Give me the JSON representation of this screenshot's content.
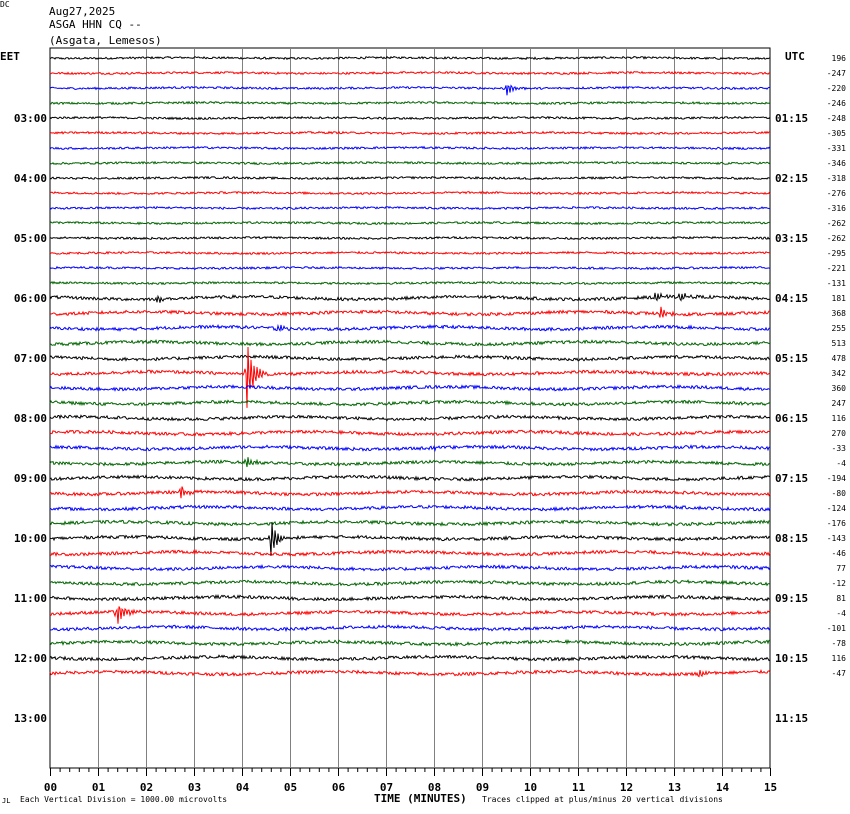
{
  "header": {
    "date": "Aug27,2025",
    "station": "ASGA HHN CQ --",
    "location": "(Asgata, Lemesos)"
  },
  "axes_labels": {
    "left_zone": "EET",
    "right_zone": "UTC",
    "dc": "DC",
    "x_title": "TIME (MINUTES)"
  },
  "footer": {
    "vertical_division": "Each Vertical Division = 1000.00 microvolts",
    "clipping": "Traces clipped at plus/minus 20 vertical divisions",
    "corner": "JL"
  },
  "colors": {
    "trace_cycle": [
      "#000000",
      "#ff0000",
      "#0000ff",
      "#006400"
    ],
    "grid": "#808080"
  },
  "chart_data": {
    "type": "line",
    "subtype": "helicorder",
    "x_range_minutes": [
      0,
      15
    ],
    "x_ticks": [
      "00",
      "01",
      "02",
      "03",
      "04",
      "05",
      "06",
      "07",
      "08",
      "09",
      "10",
      "11",
      "12",
      "13",
      "14",
      "15"
    ],
    "trace_minutes": 15,
    "left_hour_labels": [
      {
        "row": 4,
        "label": "03:00"
      },
      {
        "row": 8,
        "label": "04:00"
      },
      {
        "row": 12,
        "label": "05:00"
      },
      {
        "row": 16,
        "label": "06:00"
      },
      {
        "row": 20,
        "label": "07:00"
      },
      {
        "row": 24,
        "label": "08:00"
      },
      {
        "row": 28,
        "label": "09:00"
      },
      {
        "row": 32,
        "label": "10:00"
      },
      {
        "row": 36,
        "label": "11:00"
      },
      {
        "row": 40,
        "label": "12:00"
      },
      {
        "row": 44,
        "label": "13:00"
      }
    ],
    "right_hour_labels": [
      {
        "row": 4,
        "label": "01:15"
      },
      {
        "row": 8,
        "label": "02:15"
      },
      {
        "row": 12,
        "label": "03:15"
      },
      {
        "row": 16,
        "label": "04:15"
      },
      {
        "row": 20,
        "label": "05:15"
      },
      {
        "row": 24,
        "label": "06:15"
      },
      {
        "row": 28,
        "label": "07:15"
      },
      {
        "row": 32,
        "label": "08:15"
      },
      {
        "row": 36,
        "label": "09:15"
      },
      {
        "row": 40,
        "label": "10:15"
      },
      {
        "row": 44,
        "label": "11:15"
      }
    ],
    "dc_offsets": [
      "196",
      "-247",
      "-220",
      "-246",
      "-248",
      "-305",
      "-331",
      "-346",
      "-318",
      "-276",
      "-316",
      "-262",
      "-262",
      "-295",
      "-221",
      "-131",
      "181",
      "368",
      "255",
      "513",
      "478",
      "342",
      "360",
      "247",
      "116",
      "270",
      "-33",
      "-4",
      "-194",
      "-80",
      "-124",
      "-176",
      "-143",
      "-46",
      "77",
      "-12",
      "81",
      "-4",
      "-101",
      "-78",
      "116",
      "-47"
    ],
    "events": [
      {
        "row": 2,
        "minute": 9.5,
        "amplitude": 0.6
      },
      {
        "row": 16,
        "minute": 2.2,
        "amplitude": 0.4
      },
      {
        "row": 16,
        "minute": 12.6,
        "amplitude": 0.5
      },
      {
        "row": 16,
        "minute": 13.1,
        "amplitude": 0.4
      },
      {
        "row": 17,
        "minute": 12.7,
        "amplitude": 0.5
      },
      {
        "row": 18,
        "minute": 4.7,
        "amplitude": 0.4
      },
      {
        "row": 21,
        "minute": 4.1,
        "amplitude": 3.2
      },
      {
        "row": 26,
        "minute": 7.9,
        "amplitude": 0.4
      },
      {
        "row": 27,
        "minute": 4.1,
        "amplitude": 0.5
      },
      {
        "row": 29,
        "minute": 2.7,
        "amplitude": 0.6
      },
      {
        "row": 32,
        "minute": 4.6,
        "amplitude": 1.6
      },
      {
        "row": 37,
        "minute": 1.4,
        "amplitude": 1.1
      },
      {
        "row": 41,
        "minute": 13.5,
        "amplitude": 0.4
      },
      {
        "row": 42,
        "minute": 8.3,
        "amplitude": 0.8
      }
    ]
  }
}
